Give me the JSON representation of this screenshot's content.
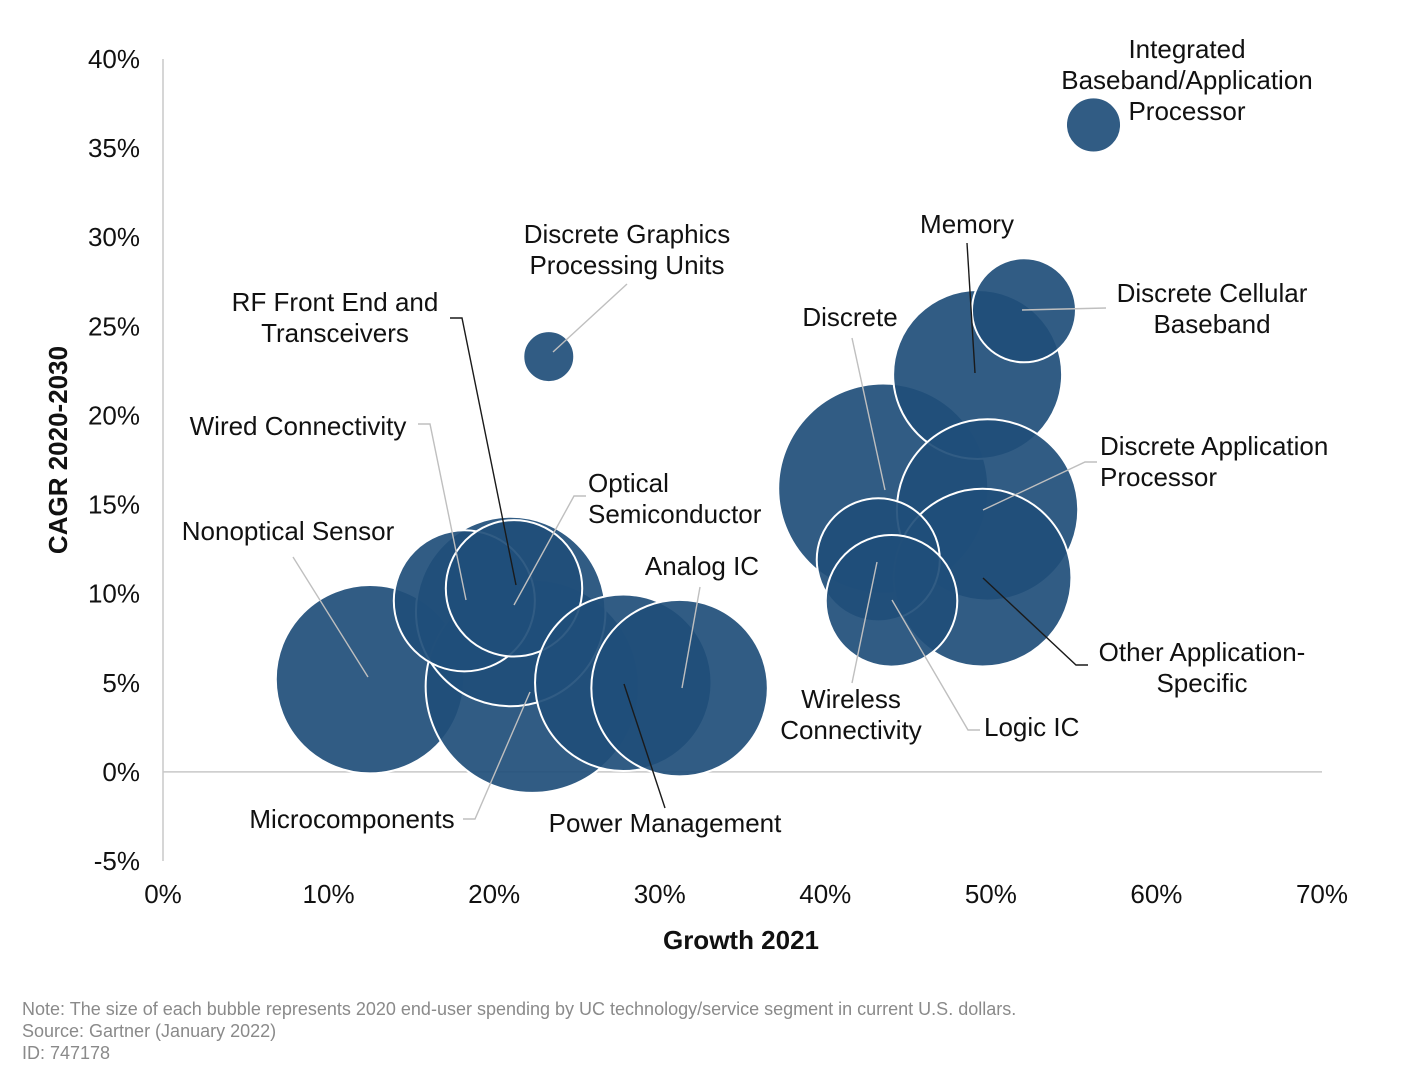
{
  "chart_data": {
    "type": "bubble",
    "xlabel": "Growth 2021",
    "ylabel": "CAGR 2020-2030",
    "xlim": [
      0,
      70
    ],
    "ylim": [
      -5,
      40
    ],
    "x_ticks": [
      "0%",
      "10%",
      "20%",
      "30%",
      "40%",
      "50%",
      "60%",
      "70%"
    ],
    "y_ticks": [
      "40%",
      "35%",
      "30%",
      "25%",
      "20%",
      "15%",
      "10%",
      "5%",
      "0%",
      "-5%"
    ],
    "bubble_color": "#1f4e79",
    "points": [
      {
        "name": "Nonoptical Sensor",
        "x": 12.5,
        "y": 5.2,
        "size": 82
      },
      {
        "name": "Microcomponents",
        "x": 22.3,
        "y": 4.8,
        "size": 105
      },
      {
        "name": "RF Front End and Transceivers",
        "x": 21.0,
        "y": 9.0,
        "size": 83
      },
      {
        "name": "Wired Connectivity",
        "x": 18.2,
        "y": 9.6,
        "size": 46
      },
      {
        "name": "Optical Semiconductor",
        "x": 21.2,
        "y": 10.3,
        "size": 43
      },
      {
        "name": "Power Management",
        "x": 27.8,
        "y": 5.0,
        "size": 72
      },
      {
        "name": "Analog IC",
        "x": 31.2,
        "y": 4.7,
        "size": 72
      },
      {
        "name": "Discrete Graphics Processing Units",
        "x": 23.3,
        "y": 23.3,
        "size": 6
      },
      {
        "name": "Discrete",
        "x": 43.5,
        "y": 15.9,
        "size": 102
      },
      {
        "name": "Memory",
        "x": 49.2,
        "y": 22.3,
        "size": 66
      },
      {
        "name": "Discrete Cellular Baseband",
        "x": 52.0,
        "y": 25.9,
        "size": 25
      },
      {
        "name": "Discrete Application Processor",
        "x": 49.8,
        "y": 14.7,
        "size": 76
      },
      {
        "name": "Other Application-Specific",
        "x": 49.5,
        "y": 10.9,
        "size": 73
      },
      {
        "name": "Wireless Connectivity",
        "x": 43.2,
        "y": 11.9,
        "size": 35
      },
      {
        "name": "Logic IC",
        "x": 44.0,
        "y": 9.6,
        "size": 40
      },
      {
        "name": "Integrated Baseband/Application Processor",
        "x": 56.2,
        "y": 36.3,
        "size": 7
      }
    ],
    "labels": [
      {
        "name": "Nonoptical Sensor",
        "lines": [
          "Nonoptical Sensor"
        ]
      },
      {
        "name": "Microcomponents",
        "lines": [
          "Microcomponents"
        ]
      },
      {
        "name": "RF Front End and Transceivers",
        "lines": [
          "RF Front End and",
          "Transceivers"
        ]
      },
      {
        "name": "Wired Connectivity",
        "lines": [
          "Wired Connectivity"
        ]
      },
      {
        "name": "Optical Semiconductor",
        "lines": [
          "Optical",
          "Semiconductor"
        ]
      },
      {
        "name": "Power Management",
        "lines": [
          "Power Management"
        ]
      },
      {
        "name": "Analog IC",
        "lines": [
          "Analog IC"
        ]
      },
      {
        "name": "Discrete Graphics Processing Units",
        "lines": [
          "Discrete Graphics",
          "Processing Units"
        ]
      },
      {
        "name": "Discrete",
        "lines": [
          "Discrete"
        ]
      },
      {
        "name": "Memory",
        "lines": [
          "Memory"
        ]
      },
      {
        "name": "Discrete Cellular Baseband",
        "lines": [
          "Discrete Cellular",
          "Baseband"
        ]
      },
      {
        "name": "Discrete Application Processor",
        "lines": [
          "Discrete Application",
          "Processor"
        ]
      },
      {
        "name": "Other Application-Specific",
        "lines": [
          "Other Application-",
          "Specific"
        ]
      },
      {
        "name": "Wireless Connectivity",
        "lines": [
          "Wireless",
          "Connectivity"
        ]
      },
      {
        "name": "Logic IC",
        "lines": [
          "Logic IC"
        ]
      },
      {
        "name": "Integrated Baseband/Application Processor",
        "lines": [
          "Integrated",
          "Baseband/Application",
          "Processor"
        ]
      }
    ]
  },
  "footer": {
    "note": "Note: The size of each bubble represents 2020 end-user spending by UC technology/service segment in current U.S. dollars.",
    "source": "Source: Gartner (January 2022)",
    "id": "ID: 747178"
  }
}
